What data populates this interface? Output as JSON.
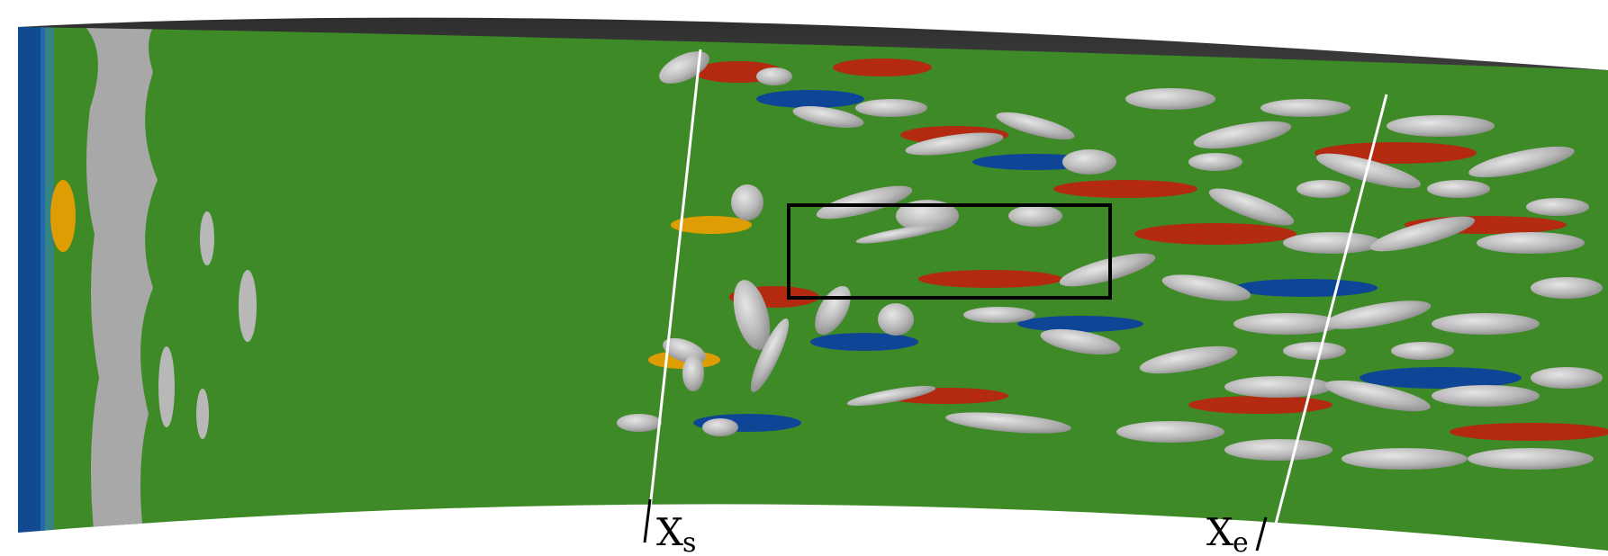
{
  "figure": {
    "markers": [
      {
        "id": "xs",
        "main": "X",
        "sub": "s"
      },
      {
        "id": "xe",
        "main": "X",
        "sub": "e"
      }
    ],
    "colors": {
      "background_field": "#3d8a26",
      "high": "#c0200f",
      "low": "#0b3ea4",
      "mid": "#f0a000",
      "isosurface": "#b8b8b8",
      "wall": "#3e3e3e",
      "probe_line": "#ffffff",
      "highlight_box": "#000000"
    }
  }
}
